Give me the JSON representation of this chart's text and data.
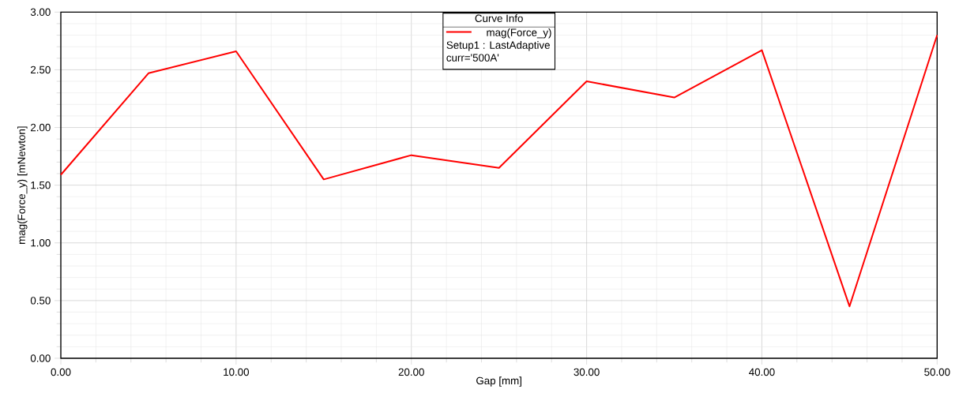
{
  "chart_data": {
    "type": "line",
    "xlabel": "Gap [mm]",
    "ylabel": "mag(Force_y) [mNewton]",
    "legend_title": "Curve Info",
    "annotations": [
      "Setup1 : LastAdaptive",
      "curr='500A'"
    ],
    "x": [
      0,
      5,
      10,
      15,
      20,
      25,
      30,
      35,
      40,
      45,
      50
    ],
    "series": [
      {
        "name": "mag(Force_y)",
        "color": "#ff0000",
        "values": [
          1.59,
          2.47,
          2.66,
          1.55,
          1.76,
          1.65,
          2.4,
          2.26,
          2.67,
          0.45,
          2.8
        ]
      }
    ],
    "xlim": [
      0,
      50
    ],
    "ylim": [
      0,
      3
    ],
    "xticks": [
      {
        "value": 0,
        "label": "0.00"
      },
      {
        "value": 2,
        "label": null
      },
      {
        "value": 4,
        "label": null
      },
      {
        "value": 6,
        "label": null
      },
      {
        "value": 8,
        "label": null
      },
      {
        "value": 10,
        "label": "10.00"
      },
      {
        "value": 12,
        "label": null
      },
      {
        "value": 14,
        "label": null
      },
      {
        "value": 16,
        "label": null
      },
      {
        "value": 18,
        "label": null
      },
      {
        "value": 20,
        "label": "20.00"
      },
      {
        "value": 22,
        "label": null
      },
      {
        "value": 24,
        "label": null
      },
      {
        "value": 26,
        "label": null
      },
      {
        "value": 28,
        "label": null
      },
      {
        "value": 30,
        "label": "30.00"
      },
      {
        "value": 32,
        "label": null
      },
      {
        "value": 34,
        "label": null
      },
      {
        "value": 36,
        "label": null
      },
      {
        "value": 38,
        "label": null
      },
      {
        "value": 40,
        "label": "40.00"
      },
      {
        "value": 42,
        "label": null
      },
      {
        "value": 44,
        "label": null
      },
      {
        "value": 46,
        "label": null
      },
      {
        "value": 48,
        "label": null
      },
      {
        "value": 50,
        "label": "50.00"
      }
    ],
    "yticks": [
      {
        "value": 0,
        "label": "0.00"
      },
      {
        "value": 0.1,
        "label": null
      },
      {
        "value": 0.2,
        "label": null
      },
      {
        "value": 0.3,
        "label": null
      },
      {
        "value": 0.4,
        "label": null
      },
      {
        "value": 0.5,
        "label": "0.50"
      },
      {
        "value": 0.6,
        "label": null
      },
      {
        "value": 0.7,
        "label": null
      },
      {
        "value": 0.8,
        "label": null
      },
      {
        "value": 0.9,
        "label": null
      },
      {
        "value": 1,
        "label": "1.00"
      },
      {
        "value": 1.1,
        "label": null
      },
      {
        "value": 1.2,
        "label": null
      },
      {
        "value": 1.3,
        "label": null
      },
      {
        "value": 1.4,
        "label": null
      },
      {
        "value": 1.5,
        "label": "1.50"
      },
      {
        "value": 1.6,
        "label": null
      },
      {
        "value": 1.7,
        "label": null
      },
      {
        "value": 1.8,
        "label": null
      },
      {
        "value": 1.9,
        "label": null
      },
      {
        "value": 2,
        "label": "2.00"
      },
      {
        "value": 2.1,
        "label": null
      },
      {
        "value": 2.2,
        "label": null
      },
      {
        "value": 2.3,
        "label": null
      },
      {
        "value": 2.4,
        "label": null
      },
      {
        "value": 2.5,
        "label": "2.50"
      },
      {
        "value": 2.6,
        "label": null
      },
      {
        "value": 2.7,
        "label": null
      },
      {
        "value": 2.8,
        "label": null
      },
      {
        "value": 2.9,
        "label": null
      },
      {
        "value": 3,
        "label": "3.00"
      }
    ],
    "grid": true,
    "legend": "top",
    "marker": "none",
    "line_style": "solid"
  }
}
